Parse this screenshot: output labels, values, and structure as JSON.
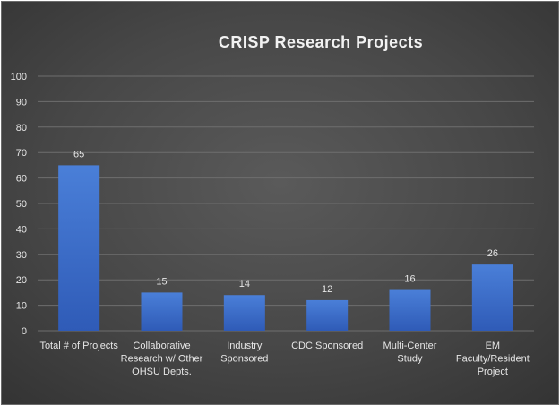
{
  "chart_data": {
    "type": "bar",
    "title": "CRISP Research Projects",
    "categories": [
      [
        "Total # of Projects"
      ],
      [
        "Collaborative",
        "Research w/ Other",
        "OHSU Depts."
      ],
      [
        "Industry",
        "Sponsored"
      ],
      [
        "CDC Sponsored"
      ],
      [
        "Multi-Center",
        "Study"
      ],
      [
        "EM",
        "Faculty/Resident",
        "Project"
      ]
    ],
    "values": [
      65,
      15,
      14,
      12,
      16,
      26
    ],
    "value_labels": [
      "65",
      "15",
      "14",
      "12",
      "16",
      "26"
    ],
    "ylim": [
      0,
      100
    ],
    "yticks": [
      "0",
      "10",
      "20",
      "30",
      "40",
      "50",
      "60",
      "70",
      "80",
      "90",
      "100"
    ],
    "grid": true,
    "legend": "none",
    "colors": {
      "bar_top": "#4a7fd8",
      "bar_bottom": "#2f5bb7",
      "grid": "#6e6e6e",
      "text": "#e6e6e6"
    }
  }
}
